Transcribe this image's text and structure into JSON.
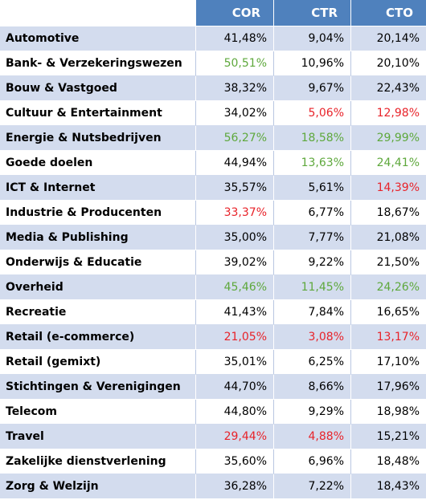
{
  "colors": {
    "header_bg": "#4f81bd",
    "band": "#d3dcee",
    "green": "#5ea83c",
    "red": "#e8232a"
  },
  "columns": [
    "COR",
    "CTR",
    "CTO"
  ],
  "rows": [
    {
      "label": "Automotive",
      "cor": "41,48%",
      "ctr": "9,04%",
      "cto": "20,14%",
      "cor_c": "normal",
      "ctr_c": "normal",
      "cto_c": "normal"
    },
    {
      "label": "Bank- & Verzekeringswezen",
      "cor": "50,51%",
      "ctr": "10,96%",
      "cto": "20,10%",
      "cor_c": "green",
      "ctr_c": "normal",
      "cto_c": "normal"
    },
    {
      "label": "Bouw & Vastgoed",
      "cor": "38,32%",
      "ctr": "9,67%",
      "cto": "22,43%",
      "cor_c": "normal",
      "ctr_c": "normal",
      "cto_c": "normal"
    },
    {
      "label": "Cultuur & Entertainment",
      "cor": "34,02%",
      "ctr": "5,06%",
      "cto": "12,98%",
      "cor_c": "normal",
      "ctr_c": "red",
      "cto_c": "red"
    },
    {
      "label": "Energie & Nutsbedrijven",
      "cor": "56,27%",
      "ctr": "18,58%",
      "cto": "29,99%",
      "cor_c": "green",
      "ctr_c": "green",
      "cto_c": "green"
    },
    {
      "label": "Goede doelen",
      "cor": "44,94%",
      "ctr": "13,63%",
      "cto": "24,41%",
      "cor_c": "normal",
      "ctr_c": "green",
      "cto_c": "green"
    },
    {
      "label": "ICT & Internet",
      "cor": "35,57%",
      "ctr": "5,61%",
      "cto": "14,39%",
      "cor_c": "normal",
      "ctr_c": "normal",
      "cto_c": "red"
    },
    {
      "label": "Industrie & Producenten",
      "cor": "33,37%",
      "ctr": "6,77%",
      "cto": "18,67%",
      "cor_c": "red",
      "ctr_c": "normal",
      "cto_c": "normal"
    },
    {
      "label": "Media & Publishing",
      "cor": "35,00%",
      "ctr": "7,77%",
      "cto": "21,08%",
      "cor_c": "normal",
      "ctr_c": "normal",
      "cto_c": "normal"
    },
    {
      "label": "Onderwijs & Educatie",
      "cor": "39,02%",
      "ctr": "9,22%",
      "cto": "21,50%",
      "cor_c": "normal",
      "ctr_c": "normal",
      "cto_c": "normal"
    },
    {
      "label": "Overheid",
      "cor": "45,46%",
      "ctr": "11,45%",
      "cto": "24,26%",
      "cor_c": "green",
      "ctr_c": "green",
      "cto_c": "green"
    },
    {
      "label": "Recreatie",
      "cor": "41,43%",
      "ctr": "7,84%",
      "cto": "16,65%",
      "cor_c": "normal",
      "ctr_c": "normal",
      "cto_c": "normal"
    },
    {
      "label": "Retail (e-commerce)",
      "cor": "21,05%",
      "ctr": "3,08%",
      "cto": "13,17%",
      "cor_c": "red",
      "ctr_c": "red",
      "cto_c": "red"
    },
    {
      "label": "Retail (gemixt)",
      "cor": "35,01%",
      "ctr": "6,25%",
      "cto": "17,10%",
      "cor_c": "normal",
      "ctr_c": "normal",
      "cto_c": "normal"
    },
    {
      "label": "Stichtingen & Verenigingen",
      "cor": "44,70%",
      "ctr": "8,66%",
      "cto": "17,96%",
      "cor_c": "normal",
      "ctr_c": "normal",
      "cto_c": "normal"
    },
    {
      "label": "Telecom",
      "cor": "44,80%",
      "ctr": "9,29%",
      "cto": "18,98%",
      "cor_c": "normal",
      "ctr_c": "normal",
      "cto_c": "normal"
    },
    {
      "label": "Travel",
      "cor": "29,44%",
      "ctr": "4,88%",
      "cto": "15,21%",
      "cor_c": "red",
      "ctr_c": "red",
      "cto_c": "normal"
    },
    {
      "label": "Zakelijke dienstverlening",
      "cor": "35,60%",
      "ctr": "6,96%",
      "cto": "18,48%",
      "cor_c": "normal",
      "ctr_c": "normal",
      "cto_c": "normal"
    },
    {
      "label": "Zorg & Welzijn",
      "cor": "36,28%",
      "ctr": "7,22%",
      "cto": "18,43%",
      "cor_c": "normal",
      "ctr_c": "normal",
      "cto_c": "normal"
    }
  ]
}
